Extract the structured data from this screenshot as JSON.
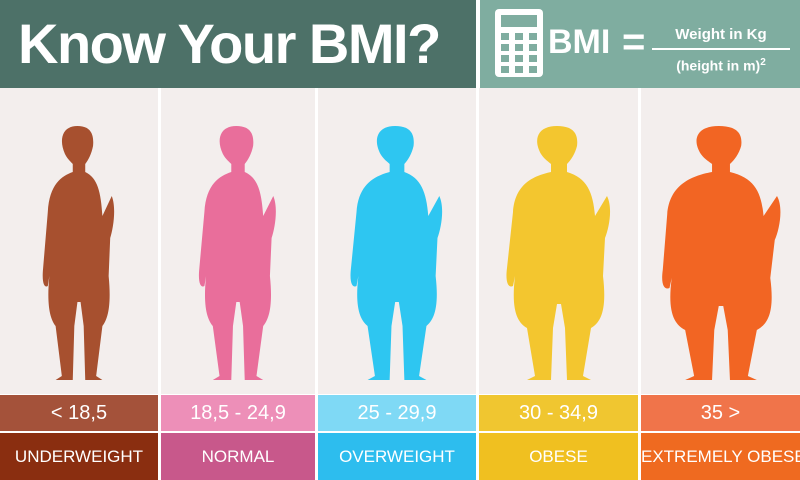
{
  "header": {
    "title": "Know Your  BMI?",
    "formula": {
      "label": "BMI",
      "equals": "=",
      "numerator": "Weight in Kg",
      "denominator": "(height in m)",
      "exponent": "2"
    }
  },
  "categories": [
    {
      "range": "< 18,5",
      "name": "UNDERWEIGHT",
      "figure_color": "#a7502f",
      "range_color": "#a4523a",
      "name_color": "#8a2e10"
    },
    {
      "range": "18,5 - 24,9",
      "name": "NORMAL",
      "figure_color": "#e96e9b",
      "range_color": "#ed8fb8",
      "name_color": "#c8588b"
    },
    {
      "range": "25 - 29,9",
      "name": "OVERWEIGHT",
      "figure_color": "#2ec6f1",
      "range_color": "#7fd9f5",
      "name_color": "#2dbdee"
    },
    {
      "range": "30 - 34,9",
      "name": "OBESE",
      "figure_color": "#f3c62f",
      "range_color": "#f0c630",
      "name_color": "#f0c020"
    },
    {
      "range": "35 >",
      "name": "EXTREMELY OBESE",
      "figure_color": "#f26523",
      "range_color": "#f0744a",
      "name_color": "#ef6a20"
    }
  ]
}
